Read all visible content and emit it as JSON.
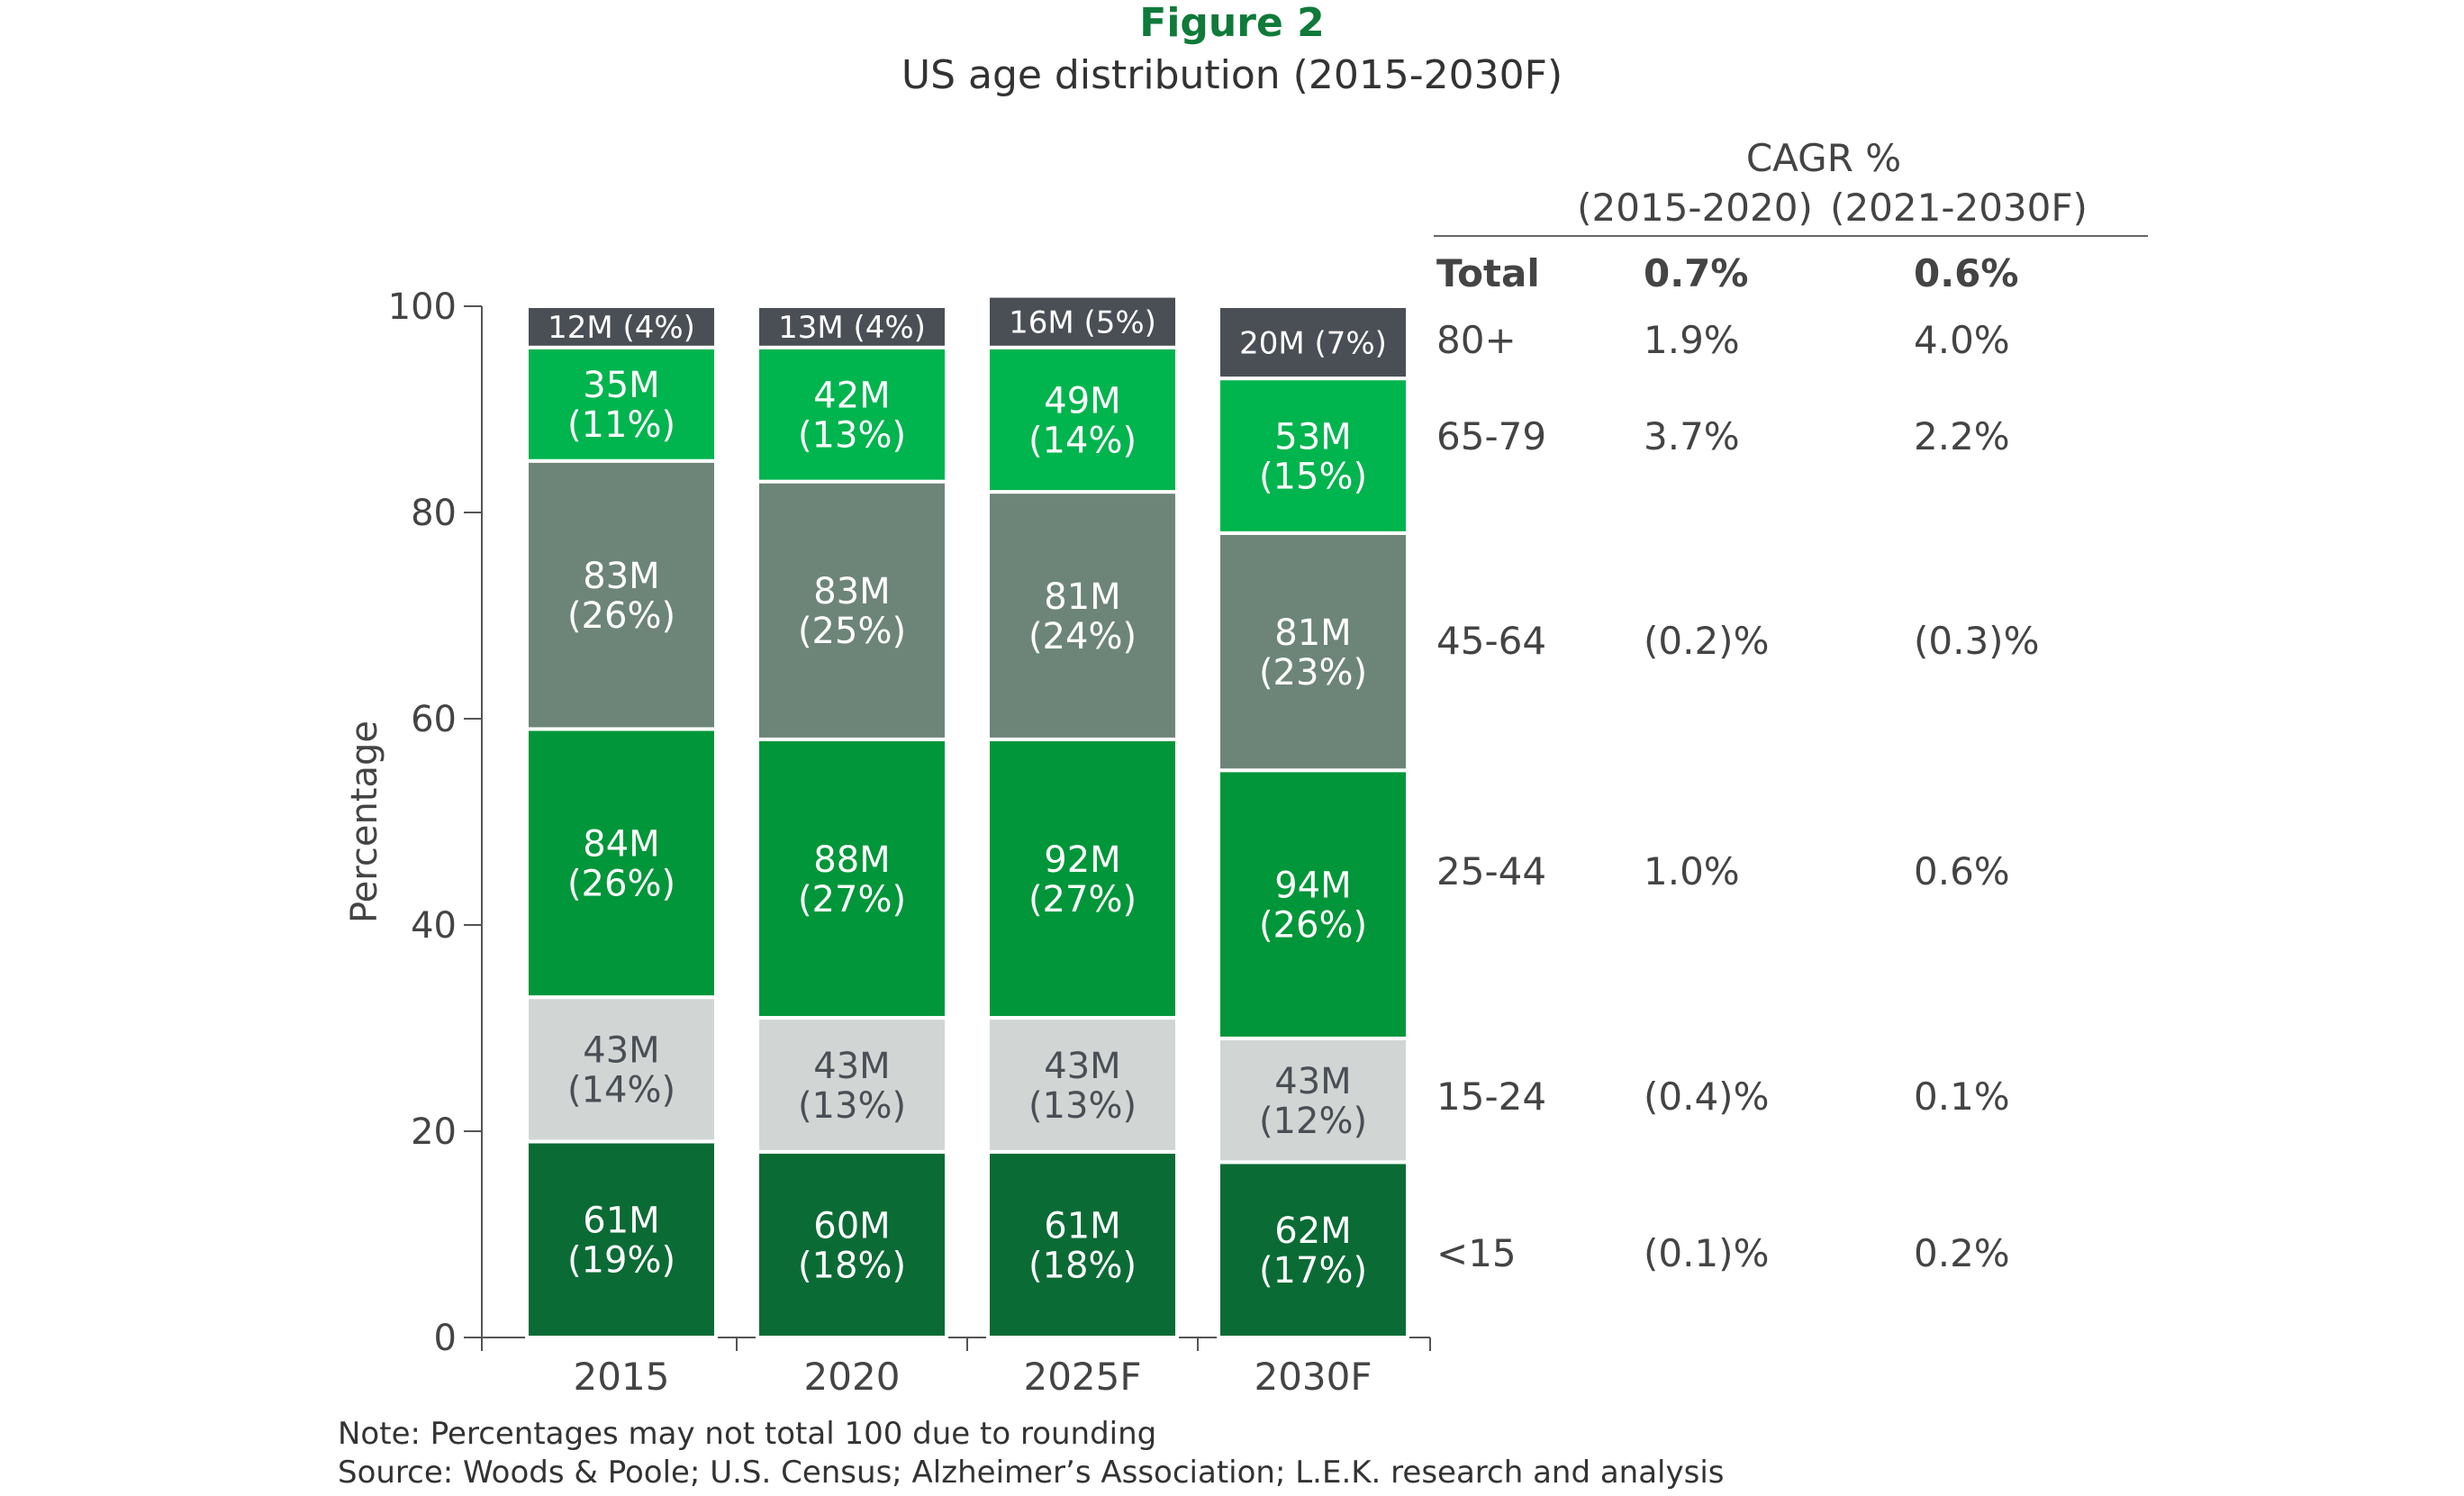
{
  "title": "Figure 2",
  "subtitle": "US age distribution (2015-2030F)",
  "notes": [
    "Note: Percentages may not total 100 due to rounding",
    "Source: Woods & Poole; U.S. Census; Alzheimer’s Association; L.E.K. research and analysis"
  ],
  "colors": {
    "<15": "#0b6b35",
    "15-24": "#d1d6d4",
    "25-44": "#009639",
    "45-64": "#6d8579",
    "65-79": "#00b44e",
    "80+": "#4a4f55"
  },
  "chart_data": {
    "type": "bar",
    "stacked": true,
    "ylabel": "Percentage",
    "xlabel": "",
    "ylim": [
      0,
      100
    ],
    "yticks": [
      0,
      20,
      40,
      60,
      80,
      100
    ],
    "categories": [
      "2015",
      "2020",
      "2025F",
      "2030F"
    ],
    "series": [
      {
        "name": "<15",
        "values": [
          19,
          18,
          18,
          17
        ],
        "labels": [
          [
            "61M",
            "(19%)"
          ],
          [
            "60M",
            "(18%)"
          ],
          [
            "61M",
            "(18%)"
          ],
          [
            "62M",
            "(17%)"
          ]
        ]
      },
      {
        "name": "15-24",
        "values": [
          14,
          13,
          13,
          12
        ],
        "labels": [
          [
            "43M",
            "(14%)"
          ],
          [
            "43M",
            "(13%)"
          ],
          [
            "43M",
            "(13%)"
          ],
          [
            "43M",
            "(12%)"
          ]
        ]
      },
      {
        "name": "25-44",
        "values": [
          26,
          27,
          27,
          26
        ],
        "labels": [
          [
            "84M",
            "(26%)"
          ],
          [
            "88M",
            "(27%)"
          ],
          [
            "92M",
            "(27%)"
          ],
          [
            "94M",
            "(26%)"
          ]
        ]
      },
      {
        "name": "45-64",
        "values": [
          26,
          25,
          24,
          23
        ],
        "labels": [
          [
            "83M",
            "(26%)"
          ],
          [
            "83M",
            "(25%)"
          ],
          [
            "81M",
            "(24%)"
          ],
          [
            "81M",
            "(23%)"
          ]
        ]
      },
      {
        "name": "65-79",
        "values": [
          11,
          13,
          14,
          15
        ],
        "labels": [
          [
            "35M",
            "(11%)"
          ],
          [
            "42M",
            "(13%)"
          ],
          [
            "49M",
            "(14%)"
          ],
          [
            "53M",
            "(15%)"
          ]
        ]
      },
      {
        "name": "80+",
        "values": [
          4,
          4,
          5,
          7
        ],
        "labels": [
          [
            "12M (4%)"
          ],
          [
            "13M (4%)"
          ],
          [
            "16M (5%)"
          ],
          [
            "20M (7%)"
          ]
        ]
      }
    ]
  },
  "cagr_table": {
    "heading": "CAGR %",
    "columns": [
      "(2015-2020)",
      "(2021-2030F)"
    ],
    "rows": [
      {
        "label": "Total",
        "values": [
          "0.7%",
          "0.6%"
        ],
        "bold": true
      },
      {
        "label": "80+",
        "values": [
          "1.9%",
          "4.0%"
        ]
      },
      {
        "label": "65-79",
        "values": [
          "3.7%",
          "2.2%"
        ]
      },
      {
        "label": "45-64",
        "values": [
          "(0.2)%",
          "(0.3)%"
        ]
      },
      {
        "label": "25-44",
        "values": [
          "1.0%",
          "0.6%"
        ]
      },
      {
        "label": "15-24",
        "values": [
          "(0.4)%",
          "0.1%"
        ]
      },
      {
        "label": "<15",
        "values": [
          "(0.1)%",
          "0.2%"
        ]
      }
    ]
  }
}
